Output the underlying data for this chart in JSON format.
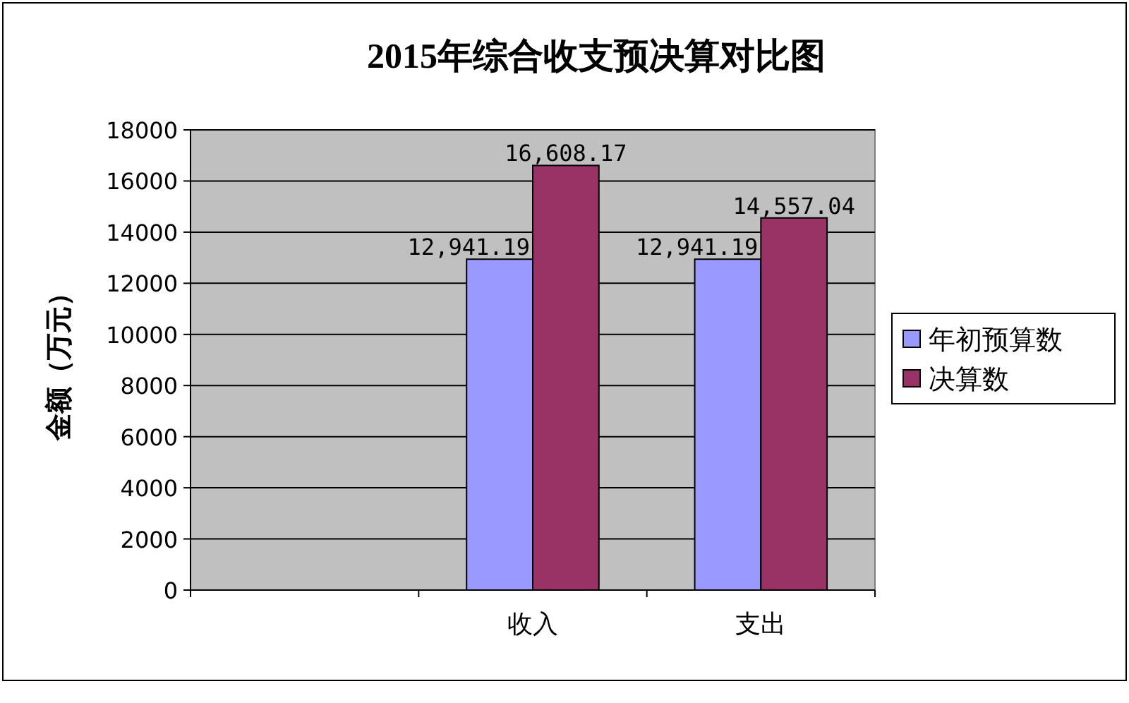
{
  "chart_data": {
    "type": "bar",
    "title": "2015年综合收支预决算对比图",
    "ylabel": "金额（万元）",
    "categories": [
      null,
      "收入",
      "支出"
    ],
    "series": [
      {
        "name": "年初预算数",
        "color": "#9999ff",
        "values": [
          null,
          12941.19,
          12941.19
        ],
        "value_labels": [
          null,
          "12,941.19",
          "12,941.19"
        ]
      },
      {
        "name": "决算数",
        "color": "#993366",
        "values": [
          null,
          16608.17,
          14557.04
        ],
        "value_labels": [
          null,
          "16,608.17",
          "14,557.04"
        ]
      }
    ],
    "ylim": [
      0,
      18000
    ],
    "yticks": [
      0,
      2000,
      4000,
      6000,
      8000,
      10000,
      12000,
      14000,
      16000,
      18000
    ],
    "grid": "y",
    "legend": "right"
  }
}
